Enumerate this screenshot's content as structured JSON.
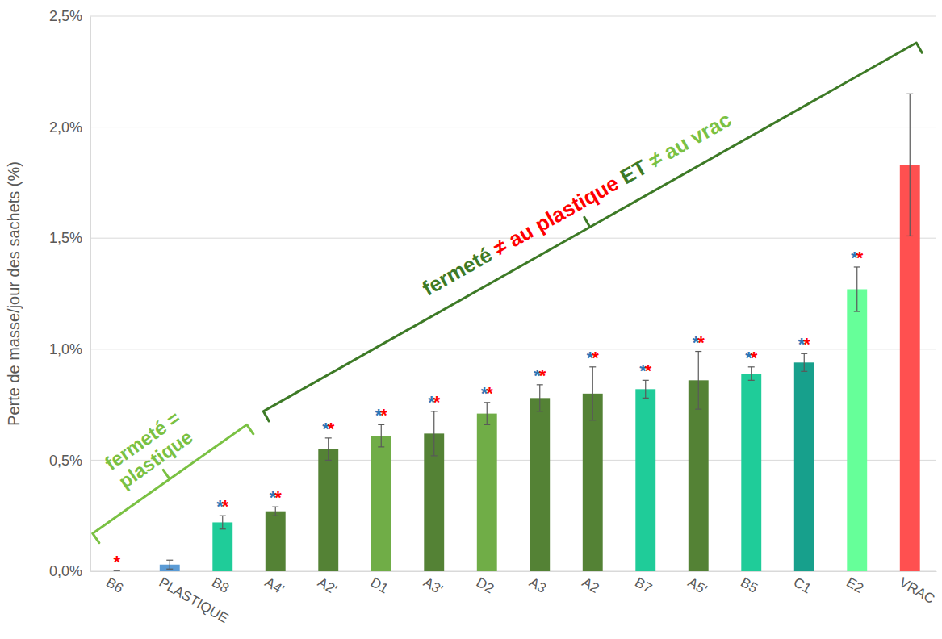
{
  "chart_data": {
    "type": "bar",
    "y_label": "Perte de masse/jour des sachets (%)",
    "categories": [
      "B6",
      "PLASTIQUE",
      "B8",
      "A4'",
      "A2'",
      "D1",
      "A3'",
      "D2",
      "A3",
      "A2",
      "B7",
      "A5'",
      "B5",
      "C1",
      "E2",
      "VRAC"
    ],
    "values": [
      0,
      0.03,
      0.22,
      0.27,
      0.55,
      0.61,
      0.62,
      0.71,
      0.78,
      0.8,
      0.82,
      0.86,
      0.89,
      0.94,
      1.27,
      1.83
    ],
    "errors": [
      0,
      0.02,
      0.03,
      0.02,
      0.05,
      0.05,
      0.1,
      0.05,
      0.06,
      0.12,
      0.04,
      0.13,
      0.03,
      0.04,
      0.1,
      0.32
    ],
    "colors": [
      "#1fcc99",
      "#5b9bd5",
      "#1fcc99",
      "#548235",
      "#548235",
      "#70ad47",
      "#548235",
      "#70ad47",
      "#548235",
      "#548235",
      "#1fcc99",
      "#548235",
      "#1fcc99",
      "#17a08c",
      "#66ff99",
      "#ff5050"
    ],
    "ylim": [
      0,
      2.5
    ],
    "yticks": [
      {
        "value": 0,
        "label": "0,0%"
      },
      {
        "value": 0.5,
        "label": "0,5%"
      },
      {
        "value": 1,
        "label": "1,0%"
      },
      {
        "value": 1.5,
        "label": "1,5%"
      },
      {
        "value": 2,
        "label": "2,0%"
      },
      {
        "value": 2.5,
        "label": "2,5%"
      }
    ],
    "grid": true,
    "significance": {
      "symbol": "*",
      "colors": [
        "#2e75b6",
        "#ff0000"
      ],
      "vs_plastique": [
        false,
        false,
        true,
        true,
        true,
        true,
        true,
        true,
        true,
        true,
        true,
        true,
        true,
        true,
        true,
        false
      ],
      "vs_vrac": [
        true,
        false,
        true,
        true,
        true,
        true,
        true,
        true,
        true,
        true,
        true,
        true,
        true,
        true,
        true,
        false
      ]
    },
    "annotations": [
      {
        "lines": [
          "fermeté =",
          "plastique"
        ],
        "color": "#7ac143"
      },
      {
        "parts": [
          {
            "text": "fermeté ",
            "color": "#3d7a26"
          },
          {
            "text": "≠ au plastique",
            "color": "#ff0000"
          },
          {
            "text": " ET ",
            "color": "#3d7a26"
          },
          {
            "text": "≠ au vrac",
            "color": "#7ac143"
          }
        ]
      }
    ]
  }
}
